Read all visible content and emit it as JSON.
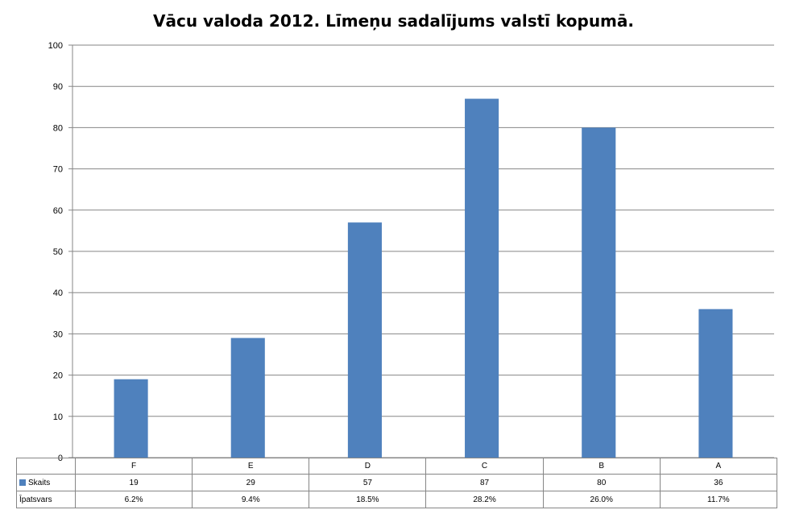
{
  "chart_data": {
    "type": "bar",
    "title": "Vācu valoda 2012. Līmeņu sadalījums valstī kopumā.",
    "categories": [
      "F",
      "E",
      "D",
      "C",
      "B",
      "A"
    ],
    "series": [
      {
        "name": "Skaits",
        "values": [
          19,
          29,
          57,
          87,
          80,
          36
        ],
        "color": "#4f81bd"
      }
    ],
    "table_rows": [
      {
        "label": "Skaits",
        "values": [
          "19",
          "29",
          "57",
          "87",
          "80",
          "36"
        ]
      },
      {
        "label": "Īpatsvars",
        "values": [
          "6.2%",
          "9.4%",
          "18.5%",
          "28.2%",
          "26.0%",
          "11.7%"
        ]
      }
    ],
    "ylim": [
      0,
      100
    ],
    "yticks": [
      0,
      10,
      20,
      30,
      40,
      50,
      60,
      70,
      80,
      90,
      100
    ],
    "grid": true,
    "legend": "data-table"
  }
}
